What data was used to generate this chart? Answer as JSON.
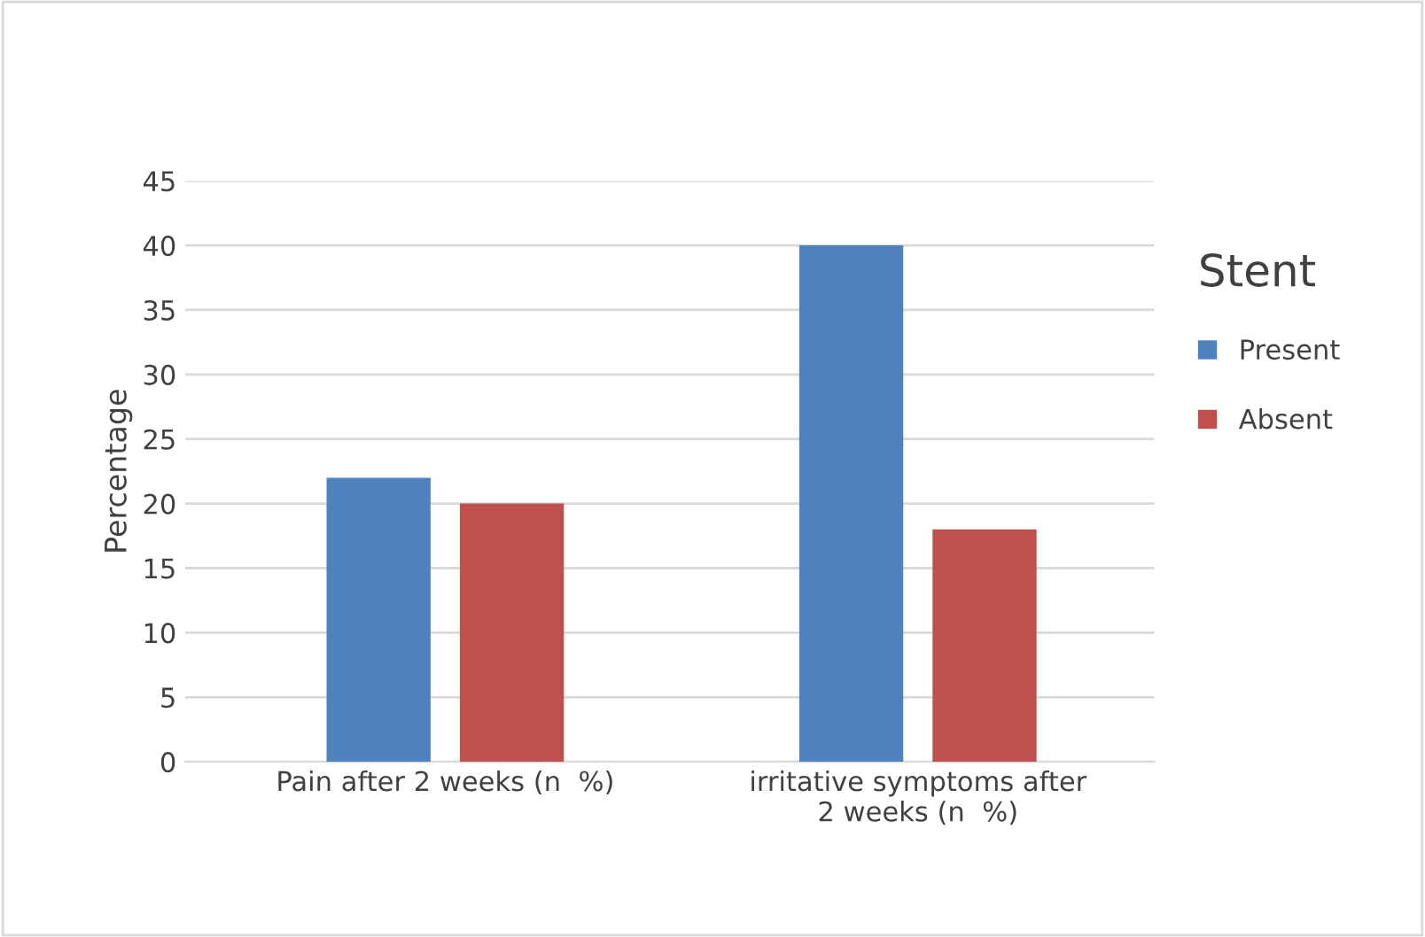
{
  "chart_data": {
    "type": "bar",
    "categories": [
      "Pain after 2 weeks (n  %)",
      "irritative symptoms after\n2 weeks (n  %)"
    ],
    "series": [
      {
        "name": "Present",
        "color": "#4f81bd",
        "values": [
          22,
          40
        ]
      },
      {
        "name": "Absent",
        "color": "#c0504d",
        "values": [
          20,
          18
        ]
      }
    ],
    "ylabel": "Percentage",
    "legend_title": "Stent",
    "legend": "right",
    "ylim": [
      0,
      45
    ],
    "yticks": [
      0,
      5,
      10,
      15,
      20,
      25,
      30,
      35,
      40,
      45
    ],
    "grid": "y"
  }
}
